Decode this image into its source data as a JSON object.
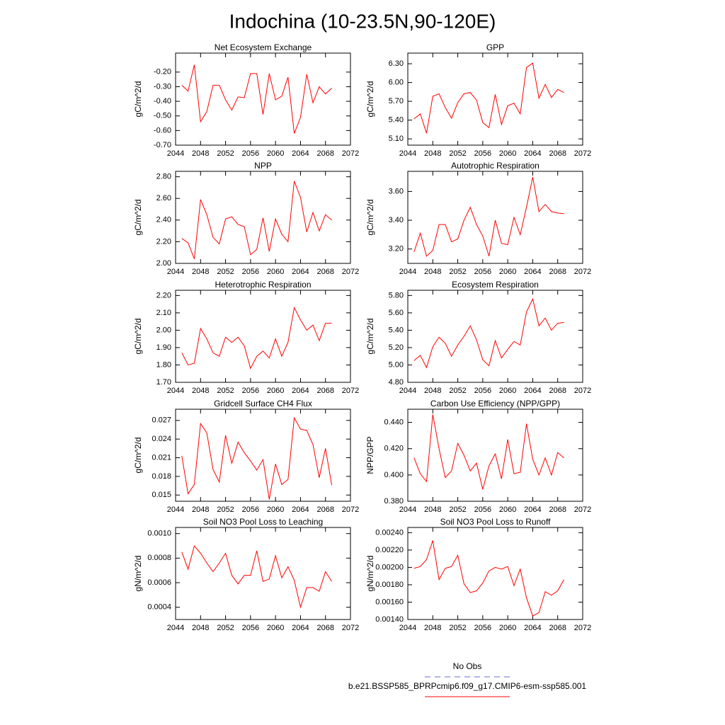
{
  "title": "Indochina (10-23.5N,90-120E)",
  "legend": [
    {
      "label": "No Obs",
      "color": "#6a6ad8",
      "dashed": true
    },
    {
      "label": "b.e21.BSSP585_BPRPcmip6.f09_g17.CMIP6-esm-ssp585.001",
      "color": "#ff0000",
      "dashed": false
    }
  ],
  "chart_data": [
    {
      "type": "line",
      "title": "Net Ecosystem Exchange",
      "y_label": "gC/m^2/d",
      "color": "#ff0000",
      "x": [
        2045,
        2046,
        2047,
        2048,
        2049,
        2050,
        2051,
        2052,
        2053,
        2054,
        2055,
        2056,
        2057,
        2058,
        2059,
        2060,
        2061,
        2062,
        2063,
        2064,
        2065,
        2066,
        2067,
        2068,
        2069
      ],
      "values": [
        -0.29,
        -0.33,
        -0.15,
        -0.54,
        -0.47,
        -0.29,
        -0.29,
        -0.39,
        -0.46,
        -0.37,
        -0.375,
        -0.21,
        -0.21,
        -0.49,
        -0.21,
        -0.39,
        -0.365,
        -0.235,
        -0.62,
        -0.51,
        -0.215,
        -0.41,
        -0.3,
        -0.35,
        -0.31
      ],
      "xlim": [
        2044,
        2072
      ],
      "xticks": [
        2044,
        2048,
        2052,
        2056,
        2060,
        2064,
        2068,
        2072
      ],
      "ylim": [
        -0.7,
        -0.07
      ],
      "yticks": [
        {
          "value": -0.7,
          "label": "-0.70"
        },
        {
          "value": -0.6,
          "label": "-0.60"
        },
        {
          "value": -0.5,
          "label": "-0.50"
        },
        {
          "value": -0.4,
          "label": "-0.40"
        },
        {
          "value": -0.3,
          "label": "-0.30"
        },
        {
          "value": -0.2,
          "label": "-0.20"
        }
      ]
    },
    {
      "type": "line",
      "title": "GPP",
      "y_label": "gC/m^2/d",
      "color": "#ff0000",
      "x": [
        2045,
        2046,
        2047,
        2048,
        2049,
        2050,
        2051,
        2052,
        2053,
        2054,
        2055,
        2056,
        2057,
        2058,
        2059,
        2060,
        2061,
        2062,
        2063,
        2064,
        2065,
        2066,
        2067,
        2068,
        2069
      ],
      "values": [
        5.42,
        5.5,
        5.19,
        5.78,
        5.82,
        5.6,
        5.43,
        5.68,
        5.82,
        5.84,
        5.72,
        5.36,
        5.28,
        5.81,
        5.33,
        5.63,
        5.67,
        5.5,
        6.24,
        6.31,
        5.75,
        5.97,
        5.76,
        5.89,
        5.84
      ],
      "xlim": [
        2044,
        2072
      ],
      "xticks": [
        2044,
        2048,
        2052,
        2056,
        2060,
        2064,
        2068,
        2072
      ],
      "ylim": [
        5.0,
        6.47
      ],
      "yticks": [
        {
          "value": 5.1,
          "label": "5.10"
        },
        {
          "value": 5.4,
          "label": "5.40"
        },
        {
          "value": 5.7,
          "label": "5.70"
        },
        {
          "value": 6.0,
          "label": "6.00"
        },
        {
          "value": 6.3,
          "label": "6.30"
        }
      ]
    },
    {
      "type": "line",
      "title": "NPP",
      "y_label": "gC/m^2/d",
      "color": "#ff0000",
      "x": [
        2045,
        2046,
        2047,
        2048,
        2049,
        2050,
        2051,
        2052,
        2053,
        2054,
        2055,
        2056,
        2057,
        2058,
        2059,
        2060,
        2061,
        2062,
        2063,
        2064,
        2065,
        2066,
        2067,
        2068,
        2069
      ],
      "values": [
        2.23,
        2.19,
        2.04,
        2.59,
        2.45,
        2.24,
        2.18,
        2.41,
        2.43,
        2.36,
        2.34,
        2.08,
        2.13,
        2.42,
        2.11,
        2.41,
        2.27,
        2.2,
        2.76,
        2.61,
        2.29,
        2.47,
        2.3,
        2.45,
        2.4
      ],
      "xlim": [
        2044,
        2072
      ],
      "xticks": [
        2044,
        2048,
        2052,
        2056,
        2060,
        2064,
        2068,
        2072
      ],
      "ylim": [
        2.0,
        2.85
      ],
      "yticks": [
        {
          "value": 2.0,
          "label": "2.00"
        },
        {
          "value": 2.2,
          "label": "2.20"
        },
        {
          "value": 2.4,
          "label": "2.40"
        },
        {
          "value": 2.6,
          "label": "2.60"
        },
        {
          "value": 2.8,
          "label": "2.80"
        }
      ]
    },
    {
      "type": "line",
      "title": "Autotrophic Respiration",
      "y_label": "gC/m^2/d",
      "color": "#ff0000",
      "x": [
        2045,
        2046,
        2047,
        2048,
        2049,
        2050,
        2051,
        2052,
        2053,
        2054,
        2055,
        2056,
        2057,
        2058,
        2059,
        2060,
        2061,
        2062,
        2063,
        2064,
        2065,
        2066,
        2067,
        2068,
        2069
      ],
      "values": [
        3.18,
        3.31,
        3.15,
        3.19,
        3.37,
        3.37,
        3.25,
        3.27,
        3.4,
        3.49,
        3.37,
        3.29,
        3.15,
        3.4,
        3.24,
        3.23,
        3.42,
        3.3,
        3.49,
        3.7,
        3.46,
        3.51,
        3.46,
        3.45,
        3.445
      ],
      "xlim": [
        2044,
        2072
      ],
      "xticks": [
        2044,
        2048,
        2052,
        2056,
        2060,
        2064,
        2068,
        2072
      ],
      "ylim": [
        3.1,
        3.74
      ],
      "yticks": [
        {
          "value": 3.2,
          "label": "3.20"
        },
        {
          "value": 3.4,
          "label": "3.40"
        },
        {
          "value": 3.6,
          "label": "3.60"
        }
      ]
    },
    {
      "type": "line",
      "title": "Heterotrophic Respiration",
      "y_label": "gC/m^2/d",
      "color": "#ff0000",
      "x": [
        2045,
        2046,
        2047,
        2048,
        2049,
        2050,
        2051,
        2052,
        2053,
        2054,
        2055,
        2056,
        2057,
        2058,
        2059,
        2060,
        2061,
        2062,
        2063,
        2064,
        2065,
        2066,
        2067,
        2068,
        2069
      ],
      "values": [
        1.87,
        1.8,
        1.81,
        2.01,
        1.95,
        1.87,
        1.85,
        1.96,
        1.93,
        1.96,
        1.91,
        1.78,
        1.85,
        1.88,
        1.84,
        1.95,
        1.85,
        1.93,
        2.13,
        2.06,
        2.0,
        2.03,
        1.94,
        2.04,
        2.04
      ],
      "xlim": [
        2044,
        2072
      ],
      "xticks": [
        2044,
        2048,
        2052,
        2056,
        2060,
        2064,
        2068,
        2072
      ],
      "ylim": [
        1.7,
        2.23
      ],
      "yticks": [
        {
          "value": 1.7,
          "label": "1.70"
        },
        {
          "value": 1.8,
          "label": "1.80"
        },
        {
          "value": 1.9,
          "label": "1.90"
        },
        {
          "value": 2.0,
          "label": "2.00"
        },
        {
          "value": 2.1,
          "label": "2.10"
        },
        {
          "value": 2.2,
          "label": "2.20"
        }
      ]
    },
    {
      "type": "line",
      "title": "Ecosystem Respiration",
      "y_label": "gC/m^2/d",
      "color": "#ff0000",
      "x": [
        2045,
        2046,
        2047,
        2048,
        2049,
        2050,
        2051,
        2052,
        2053,
        2054,
        2055,
        2056,
        2057,
        2058,
        2059,
        2060,
        2061,
        2062,
        2063,
        2064,
        2065,
        2066,
        2067,
        2068,
        2069
      ],
      "values": [
        5.05,
        5.11,
        4.97,
        5.21,
        5.32,
        5.25,
        5.1,
        5.23,
        5.33,
        5.45,
        5.29,
        5.06,
        4.99,
        5.28,
        5.08,
        5.18,
        5.27,
        5.23,
        5.61,
        5.76,
        5.45,
        5.54,
        5.4,
        5.48,
        5.49
      ],
      "xlim": [
        2044,
        2072
      ],
      "xticks": [
        2044,
        2048,
        2052,
        2056,
        2060,
        2064,
        2068,
        2072
      ],
      "ylim": [
        4.8,
        5.86
      ],
      "yticks": [
        {
          "value": 4.8,
          "label": "4.80"
        },
        {
          "value": 5.0,
          "label": "5.00"
        },
        {
          "value": 5.2,
          "label": "5.20"
        },
        {
          "value": 5.4,
          "label": "5.40"
        },
        {
          "value": 5.6,
          "label": "5.60"
        },
        {
          "value": 5.8,
          "label": "5.80"
        }
      ]
    },
    {
      "type": "line",
      "title": "Gridcell Surface CH4 Flux",
      "y_label": "gC/m^2/d",
      "color": "#ff0000",
      "x": [
        2045,
        2046,
        2047,
        2048,
        2049,
        2050,
        2051,
        2052,
        2053,
        2054,
        2055,
        2056,
        2057,
        2058,
        2059,
        2060,
        2061,
        2062,
        2063,
        2064,
        2065,
        2066,
        2067,
        2068,
        2069
      ],
      "values": [
        0.0213,
        0.0152,
        0.0167,
        0.0265,
        0.025,
        0.0191,
        0.0171,
        0.0246,
        0.0201,
        0.0235,
        0.0218,
        0.0205,
        0.019,
        0.0207,
        0.0143,
        0.02,
        0.0167,
        0.0175,
        0.0274,
        0.0256,
        0.0254,
        0.0231,
        0.0178,
        0.0225,
        0.0166
      ],
      "xlim": [
        2044,
        2072
      ],
      "xticks": [
        2044,
        2048,
        2052,
        2056,
        2060,
        2064,
        2068,
        2072
      ],
      "ylim": [
        0.014,
        0.0288
      ],
      "yticks": [
        0.015,
        0.018,
        0.021,
        0.024,
        0.027
      ]
    },
    {
      "type": "line",
      "title": "Carbon Use Efficiency (NPP/GPP)",
      "y_label": "NPP/GPP",
      "color": "#ff0000",
      "x": [
        2045,
        2046,
        2047,
        2048,
        2049,
        2050,
        2051,
        2052,
        2053,
        2054,
        2055,
        2056,
        2057,
        2058,
        2059,
        2060,
        2061,
        2062,
        2063,
        2064,
        2065,
        2066,
        2067,
        2068,
        2069
      ],
      "values": [
        0.413,
        0.401,
        0.395,
        0.446,
        0.42,
        0.398,
        0.403,
        0.424,
        0.415,
        0.403,
        0.409,
        0.389,
        0.407,
        0.416,
        0.397,
        0.427,
        0.401,
        0.402,
        0.439,
        0.412,
        0.4,
        0.413,
        0.4,
        0.417,
        0.413
      ],
      "xlim": [
        2044,
        2072
      ],
      "xticks": [
        2044,
        2048,
        2052,
        2056,
        2060,
        2064,
        2068,
        2072
      ],
      "ylim": [
        0.38,
        0.45
      ],
      "yticks": [
        {
          "value": 0.38,
          "label": "0.380"
        },
        {
          "value": 0.4,
          "label": "0.400"
        },
        {
          "value": 0.42,
          "label": "0.420"
        },
        {
          "value": 0.44,
          "label": "0.440"
        }
      ]
    },
    {
      "type": "line",
      "title": "Soil NO3 Pool Loss to Leaching",
      "y_label": "gN/m^2/d",
      "color": "#ff0000",
      "x": [
        2045,
        2046,
        2047,
        2048,
        2049,
        2050,
        2051,
        2052,
        2053,
        2054,
        2055,
        2056,
        2057,
        2058,
        2059,
        2060,
        2061,
        2062,
        2063,
        2064,
        2065,
        2066,
        2067,
        2068,
        2069
      ],
      "values": [
        0.00085,
        0.00071,
        0.0009,
        0.00084,
        0.00076,
        0.00069,
        0.00076,
        0.00084,
        0.00066,
        0.00059,
        0.00066,
        0.00066,
        0.00086,
        0.00061,
        0.00063,
        0.00082,
        0.00064,
        0.00073,
        0.00062,
        0.0004,
        0.00056,
        0.00056,
        0.00053,
        0.00069,
        0.00061
      ],
      "xlim": [
        2044,
        2072
      ],
      "xticks": [
        2044,
        2048,
        2052,
        2056,
        2060,
        2064,
        2068,
        2072
      ],
      "ylim": [
        0.0003,
        0.00105
      ],
      "yticks": [
        0.0004,
        0.0006,
        0.0008,
        {
          "value": 0.001,
          "label": "0.0010"
        }
      ]
    },
    {
      "type": "line",
      "title": "Soil NO3 Pool Loss to Runoff",
      "y_label": "gN/m^2/d",
      "color": "#ff0000",
      "x": [
        2045,
        2046,
        2047,
        2048,
        2049,
        2050,
        2051,
        2052,
        2053,
        2054,
        2055,
        2056,
        2057,
        2058,
        2059,
        2060,
        2061,
        2062,
        2063,
        2064,
        2065,
        2066,
        2067,
        2068,
        2069
      ],
      "values": [
        0.00199,
        0.00201,
        0.00209,
        0.00231,
        0.00186,
        0.00199,
        0.00201,
        0.00214,
        0.00181,
        0.00171,
        0.00173,
        0.00182,
        0.00196,
        0.002,
        0.00198,
        0.00201,
        0.00179,
        0.00198,
        0.00165,
        0.00144,
        0.00148,
        0.00172,
        0.00168,
        0.00173,
        0.00186
      ],
      "xlim": [
        2044,
        2072
      ],
      "xticks": [
        2044,
        2048,
        2052,
        2056,
        2060,
        2064,
        2068,
        2072
      ],
      "ylim": [
        0.0014,
        0.00246
      ],
      "yticks": [
        {
          "value": 0.0014,
          "label": "0.00140"
        },
        {
          "value": 0.0016,
          "label": "0.00160"
        },
        {
          "value": 0.0018,
          "label": "0.00180"
        },
        {
          "value": 0.002,
          "label": "0.00200"
        },
        {
          "value": 0.0022,
          "label": "0.00220"
        },
        {
          "value": 0.0024,
          "label": "0.00240"
        }
      ]
    }
  ]
}
